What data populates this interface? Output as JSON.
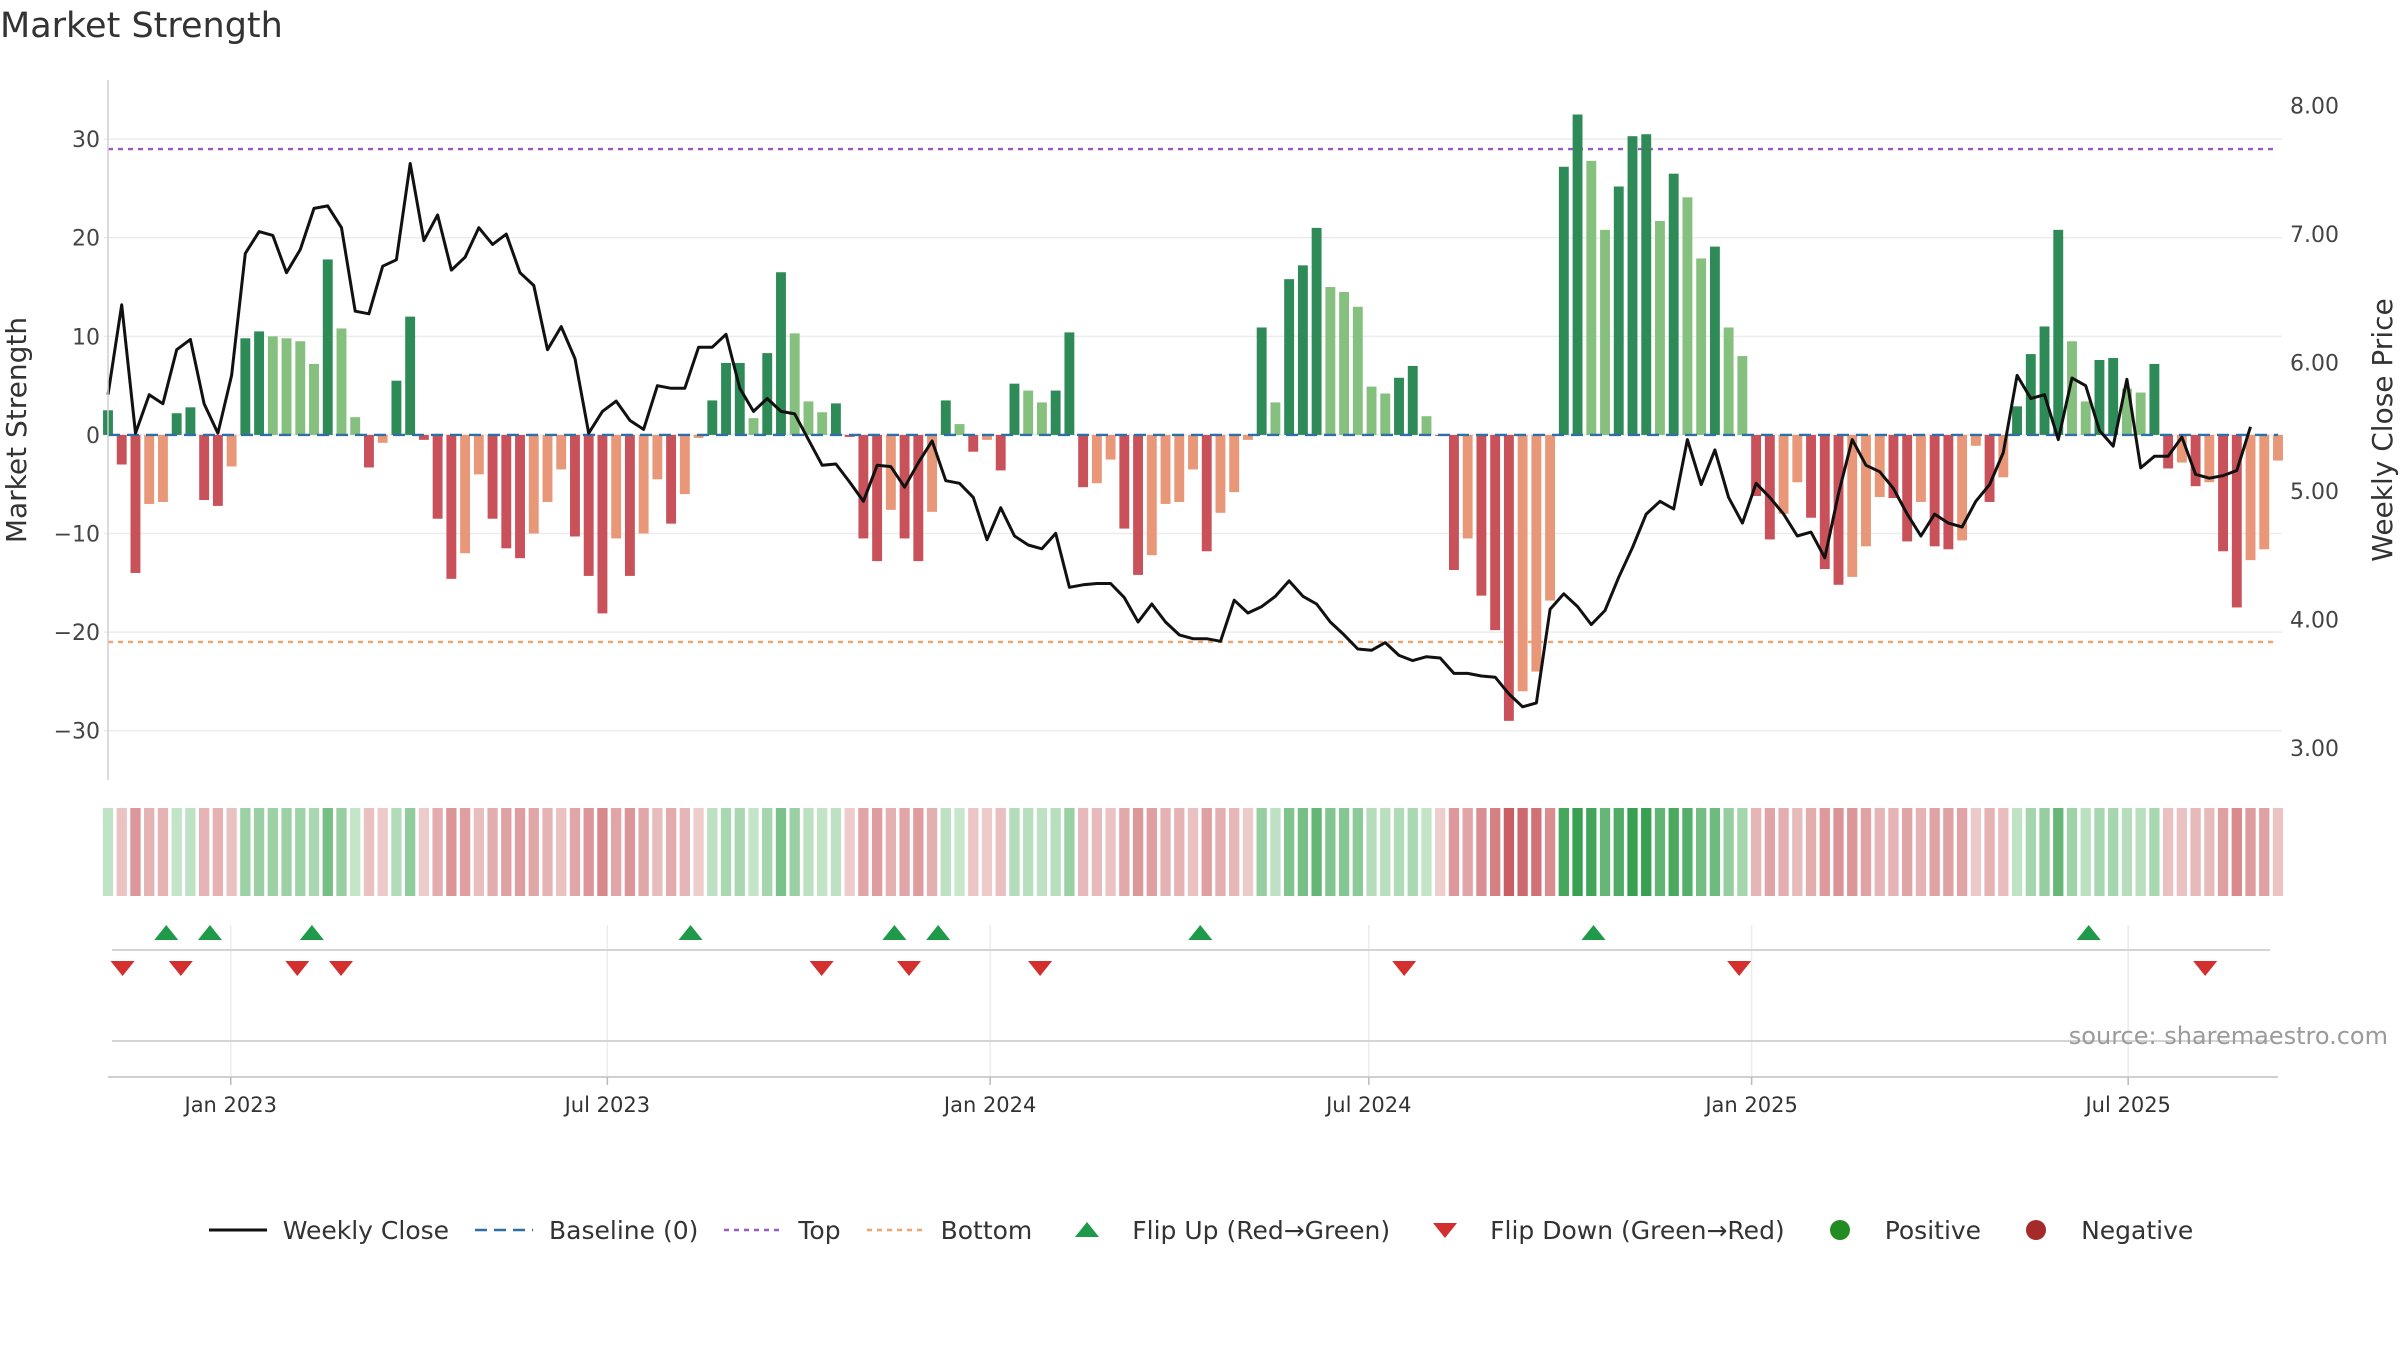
{
  "title": "Market Strength",
  "source_text": "source: sharemaestro.com",
  "colors": {
    "strong_green": "#2e8b57",
    "light_green": "#86c07f",
    "strong_red": "#c9525a",
    "light_red": "#e89779",
    "line": "#111111",
    "baseline": "#2f6fa3",
    "top": "#9b59c6",
    "bottom": "#f0a36e",
    "flip_up": "#1e9a4a",
    "flip_down": "#d32f2f",
    "positive": "#228b22",
    "negative": "#a52a2a"
  },
  "legend": [
    {
      "type": "line",
      "label": "Weekly Close"
    },
    {
      "type": "baseline",
      "label": "Baseline (0)"
    },
    {
      "type": "top",
      "label": "Top"
    },
    {
      "type": "bottom",
      "label": "Bottom"
    },
    {
      "type": "flip_up",
      "label": "Flip Up (Red→Green)"
    },
    {
      "type": "flip_down",
      "label": "Flip Down (Green→Red)"
    },
    {
      "type": "positive",
      "label": "Positive"
    },
    {
      "type": "negative",
      "label": "Negative"
    }
  ],
  "chart_data": {
    "type": "bar",
    "title": "Market Strength",
    "ylabel_left": "Market Strength",
    "ylabel_right": "Weekly Close Price",
    "ylim_left": [
      -35,
      36
    ],
    "yticks_left": [
      30,
      20,
      10,
      0,
      -10,
      -20,
      -30
    ],
    "yticks_left_labels": [
      "30",
      "20",
      "10",
      "0",
      "−10",
      "−20",
      "−30"
    ],
    "ylim_right": [
      2.75,
      8.2
    ],
    "yticks_right": [
      8.0,
      7.0,
      6.0,
      5.0,
      4.0,
      3.0
    ],
    "yticks_right_labels": [
      "8.00",
      "7.00",
      "6.00",
      "5.00",
      "4.00",
      "3.00"
    ],
    "x_start": "2022-11-03",
    "x_end": "2025-09-11",
    "x_ticks": [
      {
        "date": "2023-01-01",
        "label": "Jan 2023"
      },
      {
        "date": "2023-07-01",
        "label": "Jul 2023"
      },
      {
        "date": "2024-01-01",
        "label": "Jan 2024"
      },
      {
        "date": "2024-07-01",
        "label": "Jul 2024"
      },
      {
        "date": "2025-01-01",
        "label": "Jan 2025"
      },
      {
        "date": "2025-07-01",
        "label": "Jul 2025"
      }
    ],
    "top_line": 29,
    "bottom_line": -21,
    "grid": true,
    "legend_position": "bottom",
    "series": [
      {
        "name": "Market Strength",
        "kind": "bar",
        "values": [
          2.5,
          -3,
          -14,
          -7,
          -6.8,
          2.2,
          2.8,
          -6.6,
          -7.2,
          -3.2,
          9.8,
          10.5,
          10,
          9.8,
          9.5,
          7.2,
          17.8,
          10.8,
          1.8,
          -3.3,
          -0.8,
          5.5,
          12,
          -0.5,
          -8.5,
          -14.6,
          -12,
          -4,
          -8.5,
          -11.5,
          -12.5,
          -10,
          -6.8,
          -3.5,
          -10.3,
          -14.3,
          -18.1,
          -10.5,
          -14.3,
          -10,
          -4.5,
          -9,
          -6,
          -0.3,
          3.5,
          7.3,
          7.3,
          1.7,
          8.3,
          16.5,
          10.3,
          3.4,
          2.3,
          3.2,
          -0.2,
          -10.5,
          -12.8,
          -7.6,
          -10.5,
          -12.8,
          -7.8,
          3.5,
          1.1,
          -1.7,
          -0.5,
          -3.6,
          5.2,
          4.5,
          3.3,
          4.5,
          10.4,
          -5.3,
          -4.9,
          -2.5,
          -9.5,
          -14.2,
          -12.2,
          -7,
          -6.8,
          -3.5,
          -11.8,
          -7.9,
          -5.8,
          -0.5,
          10.9,
          3.3,
          15.8,
          17.2,
          21,
          15,
          14.5,
          13,
          4.9,
          4.2,
          5.8,
          7,
          1.9,
          -0.1,
          -13.7,
          -10.5,
          -16.3,
          -19.8,
          -29,
          -26,
          -24,
          -16.8,
          27.2,
          32.5,
          27.8,
          20.8,
          25.2,
          30.3,
          30.5,
          21.7,
          26.5,
          24.1,
          17.9,
          19.1,
          10.9,
          8,
          -6.2,
          -10.6,
          -8,
          -4.8,
          -8.4,
          -13.6,
          -15.2,
          -14.4,
          -11.3,
          -6.3,
          -6.4,
          -10.8,
          -6.8,
          -11.3,
          -11.6,
          -10.7,
          -1.1,
          -6.8,
          -4.3,
          2.9,
          8.2,
          11,
          20.8,
          9.5,
          3.4,
          7.6,
          7.8,
          4.7,
          4.3,
          7.2,
          -3.4,
          -2.8,
          -5.2,
          -4.8,
          -11.8,
          -17.5,
          -12.7,
          -11.6,
          -2.6
        ]
      },
      {
        "name": "Weekly Close",
        "kind": "line",
        "values": [
          5.75,
          6.45,
          5.45,
          5.75,
          5.68,
          6.1,
          6.18,
          5.68,
          5.45,
          5.9,
          6.85,
          7.02,
          6.99,
          6.7,
          6.88,
          7.2,
          7.22,
          7.05,
          6.4,
          6.38,
          6.75,
          6.8,
          7.55,
          6.95,
          7.15,
          6.72,
          6.82,
          7.05,
          6.92,
          7,
          6.7,
          6.6,
          6.1,
          6.28,
          6.03,
          5.45,
          5.62,
          5.7,
          5.55,
          5.48,
          5.82,
          5.8,
          5.8,
          6.12,
          6.12,
          6.22,
          5.8,
          5.62,
          5.72,
          5.62,
          5.6,
          5.4,
          5.2,
          5.21,
          5.07,
          4.92,
          5.2,
          5.19,
          5.03,
          5.22,
          5.39,
          5.08,
          5.06,
          4.95,
          4.62,
          4.87,
          4.65,
          4.58,
          4.55,
          4.67,
          4.25,
          4.27,
          4.28,
          4.28,
          4.17,
          3.98,
          4.12,
          3.98,
          3.88,
          3.85,
          3.85,
          3.83,
          4.15,
          4.05,
          4.1,
          4.18,
          4.3,
          4.18,
          4.12,
          3.98,
          3.88,
          3.77,
          3.76,
          3.82,
          3.72,
          3.68,
          3.71,
          3.7,
          3.58,
          3.58,
          3.56,
          3.55,
          3.42,
          3.32,
          3.35,
          4.08,
          4.2,
          4.1,
          3.96,
          4.07,
          4.33,
          4.56,
          4.82,
          4.92,
          4.86,
          5.4,
          5.05,
          5.32,
          4.95,
          4.75,
          5.06,
          4.95,
          4.82,
          4.65,
          4.68,
          4.48,
          4.98,
          5.4,
          5.2,
          5.15,
          5.02,
          4.82,
          4.65,
          4.82,
          4.75,
          4.72,
          4.92,
          5.05,
          5.3,
          5.9,
          5.72,
          5.75,
          5.4,
          5.88,
          5.82,
          5.47,
          5.35,
          5.87,
          5.18,
          5.27,
          5.27,
          5.42,
          5.13,
          5.1,
          5.12,
          5.16,
          5.5
        ]
      }
    ],
    "flip_up_dates": [
      "2022-12-01",
      "2022-12-22",
      "2023-02-09",
      "2023-08-10",
      "2023-11-16",
      "2023-12-07",
      "2024-04-11",
      "2024-10-17",
      "2025-06-12"
    ],
    "flip_down_dates": [
      "2022-11-10",
      "2022-12-08",
      "2023-02-02",
      "2023-02-23",
      "2023-10-12",
      "2023-11-23",
      "2024-01-25",
      "2024-07-18",
      "2024-12-26",
      "2025-08-07"
    ]
  }
}
